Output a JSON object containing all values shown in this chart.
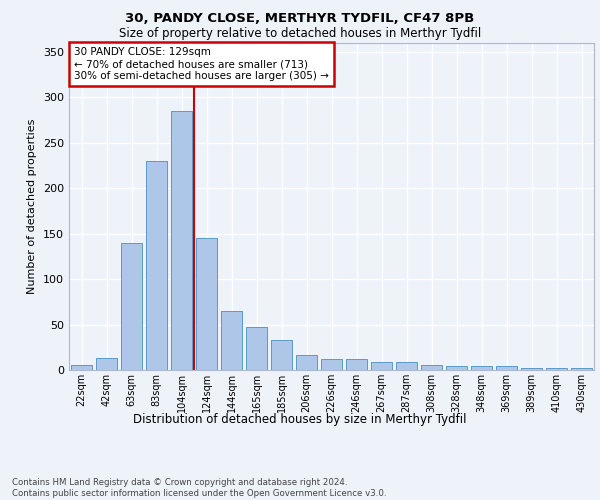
{
  "title1": "30, PANDY CLOSE, MERTHYR TYDFIL, CF47 8PB",
  "title2": "Size of property relative to detached houses in Merthyr Tydfil",
  "xlabel": "Distribution of detached houses by size in Merthyr Tydfil",
  "ylabel": "Number of detached properties",
  "categories": [
    "22sqm",
    "42sqm",
    "63sqm",
    "83sqm",
    "104sqm",
    "124sqm",
    "144sqm",
    "165sqm",
    "185sqm",
    "206sqm",
    "226sqm",
    "246sqm",
    "267sqm",
    "287sqm",
    "308sqm",
    "328sqm",
    "348sqm",
    "369sqm",
    "389sqm",
    "410sqm",
    "430sqm"
  ],
  "values": [
    5,
    13,
    140,
    230,
    285,
    145,
    65,
    47,
    33,
    17,
    12,
    12,
    9,
    9,
    6,
    4,
    4,
    4,
    2,
    2,
    2
  ],
  "bar_color": "#aec6e8",
  "bar_edge_color": "#5a9ac8",
  "vline_color": "#cc0000",
  "annotation_text": "30 PANDY CLOSE: 129sqm\n← 70% of detached houses are smaller (713)\n30% of semi-detached houses are larger (305) →",
  "annotation_box_color": "#ffffff",
  "annotation_box_edge": "#cc0000",
  "ylim": [
    0,
    360
  ],
  "yticks": [
    0,
    50,
    100,
    150,
    200,
    250,
    300,
    350
  ],
  "footnote": "Contains HM Land Registry data © Crown copyright and database right 2024.\nContains public sector information licensed under the Open Government Licence v3.0.",
  "bg_color": "#eef2f9",
  "plot_bg_color": "#eef2f9",
  "grid_color": "#ffffff"
}
